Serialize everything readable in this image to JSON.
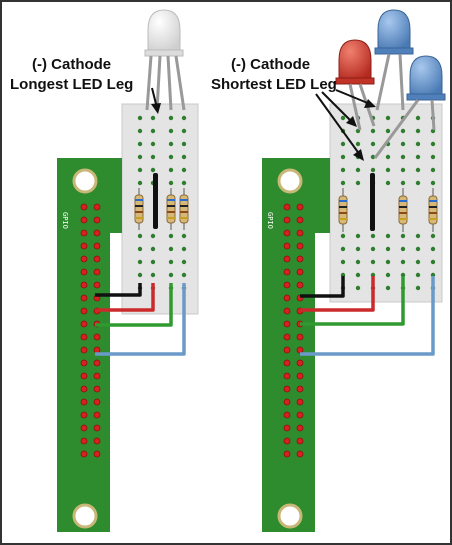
{
  "left_panel": {
    "label_line1": "(-) Cathode",
    "label_line2": "Longest LED Leg",
    "header_text": "GPIO"
  },
  "right_panel": {
    "label_line1": "(-) Cathode",
    "label_line2": "Shortest LED Leg",
    "header_text": "GPIO"
  },
  "colors": {
    "pcb": "#2e8b2e",
    "pcb_dark": "#1f6b1f",
    "breadboard": "#e4e4e4",
    "hole": "#2f7d2f",
    "pin": "#d82020",
    "wire_black": "#111111",
    "wire_red": "#cc2a2a",
    "wire_green": "#2f9a2f",
    "wire_blue": "#6a9ac8",
    "led_red": "#d23a2e",
    "led_blue": "#5b8cc4",
    "led_clear": "#e8e8e8",
    "border": "#333333"
  }
}
